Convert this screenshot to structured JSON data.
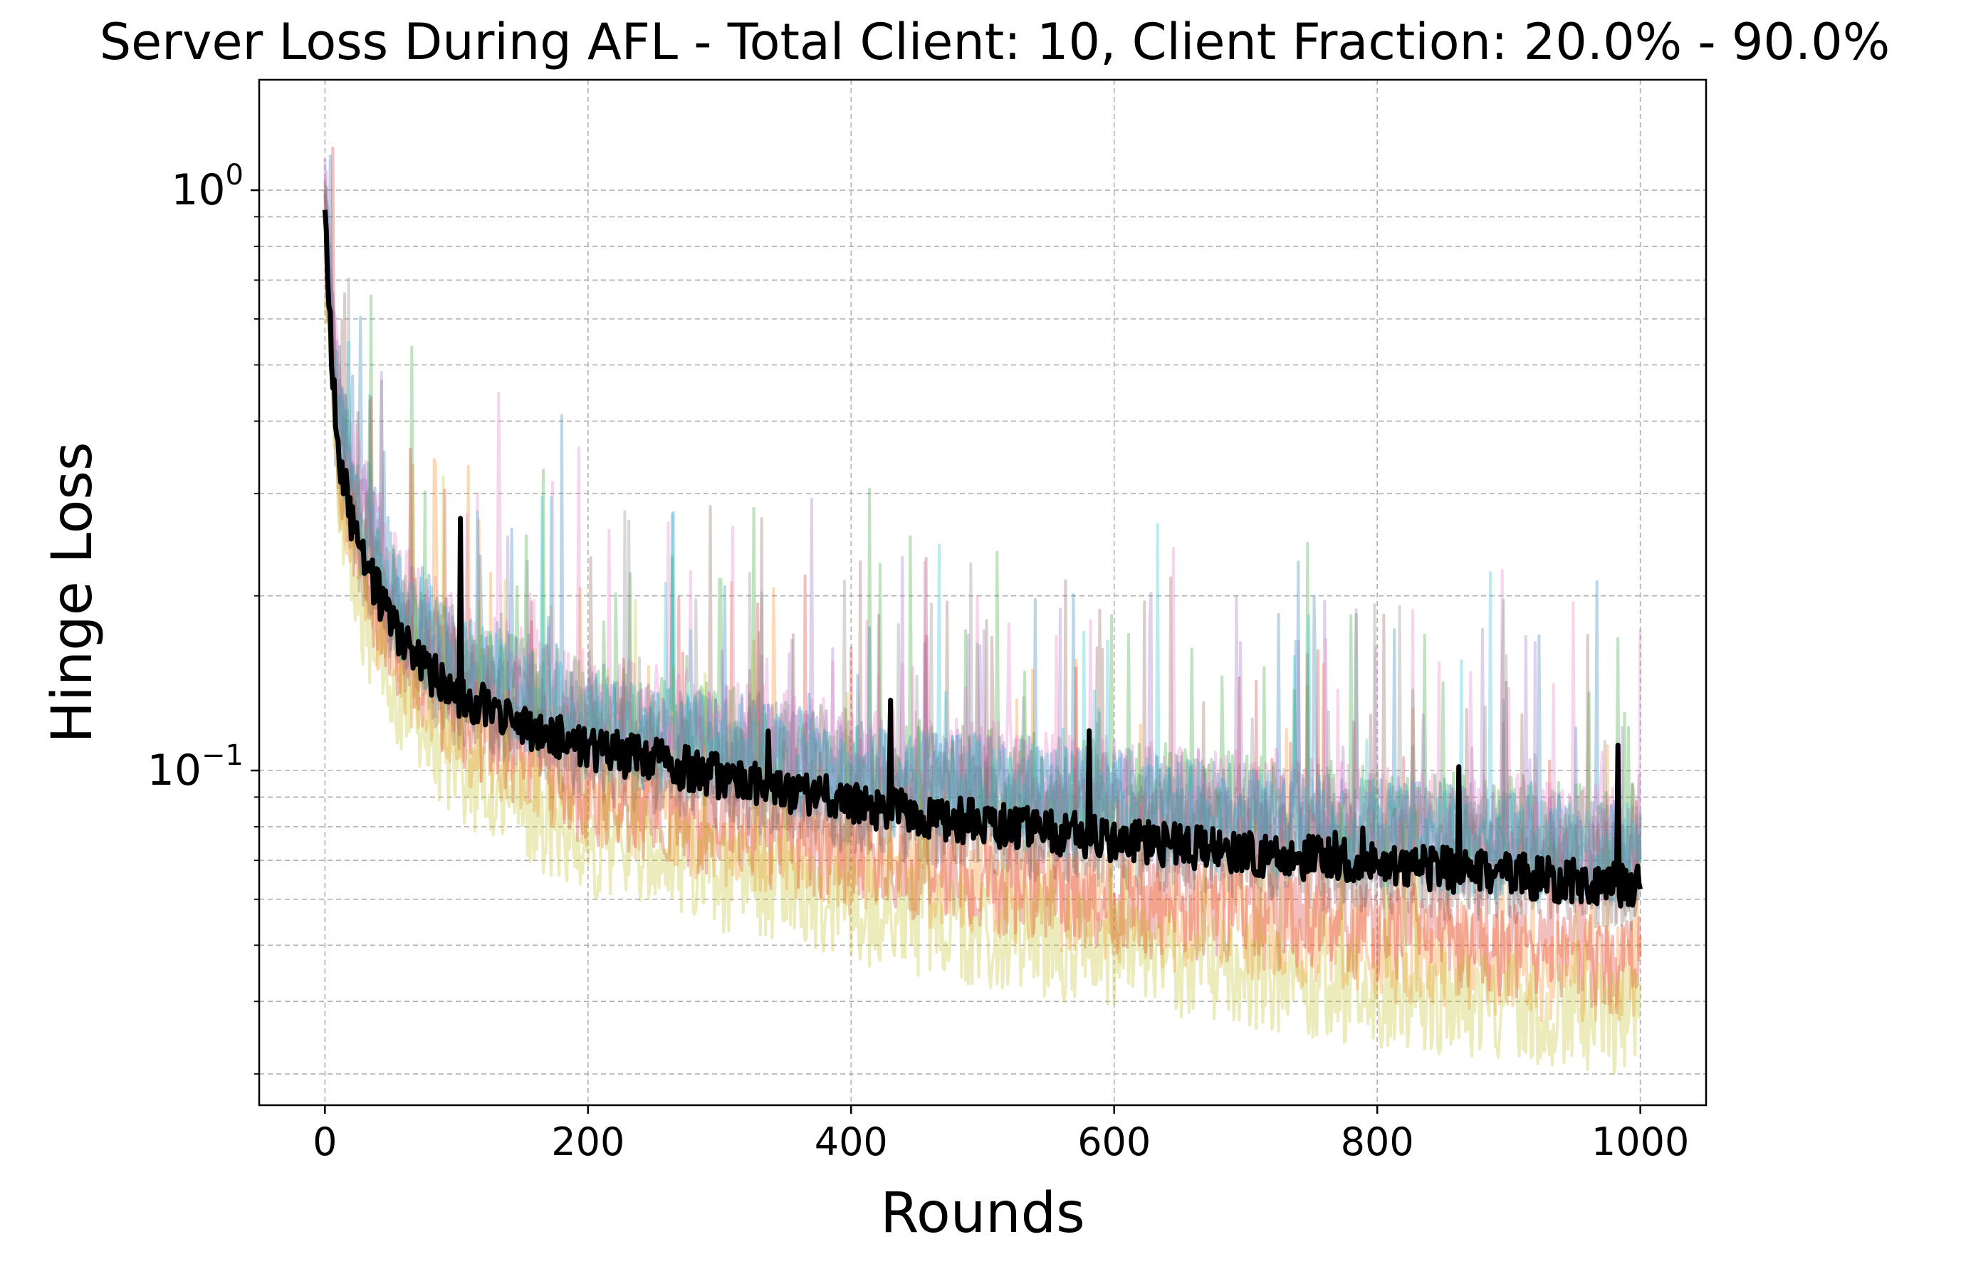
{
  "chart_data": {
    "type": "line",
    "title": "Server Loss During AFL - Total Client: 10, Client Fraction: 20.0% - 90.0%",
    "xlabel": "Rounds",
    "ylabel": "Hinge Loss",
    "yscale": "log",
    "xlim": [
      -50,
      1050
    ],
    "ylim": [
      0.0265,
      1.55
    ],
    "xticks": [
      0,
      200,
      400,
      600,
      800,
      1000
    ],
    "xtick_labels": [
      "0",
      "200",
      "400",
      "600",
      "800",
      "1000"
    ],
    "yticks": [
      {
        "value": 1,
        "base": "10",
        "exp": "0"
      },
      {
        "value": 0.1,
        "base": "10",
        "exp": "−1"
      }
    ],
    "yminor_ticks": [
      0.03,
      0.04,
      0.05,
      0.06,
      0.07,
      0.08,
      0.09,
      0.2,
      0.3,
      0.4,
      0.5,
      0.6,
      0.7,
      0.8,
      0.9
    ],
    "grid": true,
    "legend": "none",
    "colors": [
      "#1f77b4",
      "#ff7f0e",
      "#2ca02c",
      "#d62728",
      "#9467bd",
      "#8c564b",
      "#e377c2",
      "#7f7f7f",
      "#bcbd22",
      "#17becf"
    ],
    "mean_color": "#000000",
    "series_opacity": 0.3,
    "mean_series": {
      "x": [
        0,
        5,
        10,
        20,
        30,
        50,
        75,
        100,
        150,
        200,
        300,
        400,
        500,
        600,
        700,
        800,
        900,
        1000
      ],
      "y": [
        0.9,
        0.52,
        0.36,
        0.27,
        0.23,
        0.18,
        0.15,
        0.135,
        0.12,
        0.11,
        0.098,
        0.088,
        0.081,
        0.076,
        0.072,
        0.069,
        0.066,
        0.063
      ]
    },
    "series": [
      {
        "color": "#1f77b4",
        "x": [
          0,
          10,
          25,
          50,
          100,
          200,
          400,
          600,
          800,
          1000
        ],
        "y": [
          0.95,
          0.45,
          0.32,
          0.21,
          0.155,
          0.125,
          0.1,
          0.088,
          0.078,
          0.071
        ]
      },
      {
        "color": "#ff7f0e",
        "x": [
          0,
          10,
          25,
          50,
          100,
          200,
          400,
          600,
          800,
          1000
        ],
        "y": [
          0.8,
          0.33,
          0.22,
          0.16,
          0.12,
          0.09,
          0.07,
          0.058,
          0.05,
          0.044
        ]
      },
      {
        "color": "#2ca02c",
        "x": [
          0,
          10,
          25,
          50,
          100,
          200,
          400,
          600,
          800,
          1000
        ],
        "y": [
          0.9,
          0.4,
          0.28,
          0.2,
          0.15,
          0.125,
          0.102,
          0.09,
          0.082,
          0.076
        ]
      },
      {
        "color": "#d62728",
        "x": [
          0,
          10,
          25,
          50,
          100,
          200,
          400,
          600,
          800,
          1000
        ],
        "y": [
          0.85,
          0.35,
          0.24,
          0.17,
          0.125,
          0.092,
          0.072,
          0.06,
          0.053,
          0.047
        ]
      },
      {
        "color": "#9467bd",
        "x": [
          0,
          10,
          25,
          50,
          100,
          200,
          400,
          600,
          800,
          1000
        ],
        "y": [
          0.95,
          0.42,
          0.3,
          0.2,
          0.15,
          0.12,
          0.1,
          0.087,
          0.079,
          0.072
        ]
      },
      {
        "color": "#8c564b",
        "x": [
          0,
          10,
          25,
          50,
          100,
          200,
          400,
          600,
          800,
          1000
        ],
        "y": [
          0.85,
          0.35,
          0.25,
          0.18,
          0.135,
          0.11,
          0.088,
          0.077,
          0.07,
          0.065
        ]
      },
      {
        "color": "#e377c2",
        "x": [
          0,
          10,
          25,
          50,
          100,
          200,
          400,
          600,
          800,
          1000
        ],
        "y": [
          1.05,
          0.44,
          0.31,
          0.22,
          0.16,
          0.13,
          0.105,
          0.092,
          0.083,
          0.076
        ]
      },
      {
        "color": "#7f7f7f",
        "x": [
          0,
          10,
          25,
          50,
          100,
          200,
          400,
          600,
          800,
          1000
        ],
        "y": [
          0.9,
          0.38,
          0.27,
          0.19,
          0.14,
          0.112,
          0.09,
          0.079,
          0.072,
          0.066
        ]
      },
      {
        "color": "#bcbd22",
        "x": [
          0,
          10,
          25,
          50,
          100,
          200,
          400,
          600,
          800,
          1000
        ],
        "y": [
          0.75,
          0.3,
          0.2,
          0.14,
          0.1,
          0.075,
          0.058,
          0.048,
          0.041,
          0.037
        ]
      },
      {
        "color": "#17becf",
        "x": [
          0,
          10,
          25,
          50,
          100,
          200,
          400,
          600,
          800,
          1000
        ],
        "y": [
          0.92,
          0.4,
          0.28,
          0.2,
          0.15,
          0.12,
          0.098,
          0.086,
          0.078,
          0.071
        ]
      }
    ]
  }
}
